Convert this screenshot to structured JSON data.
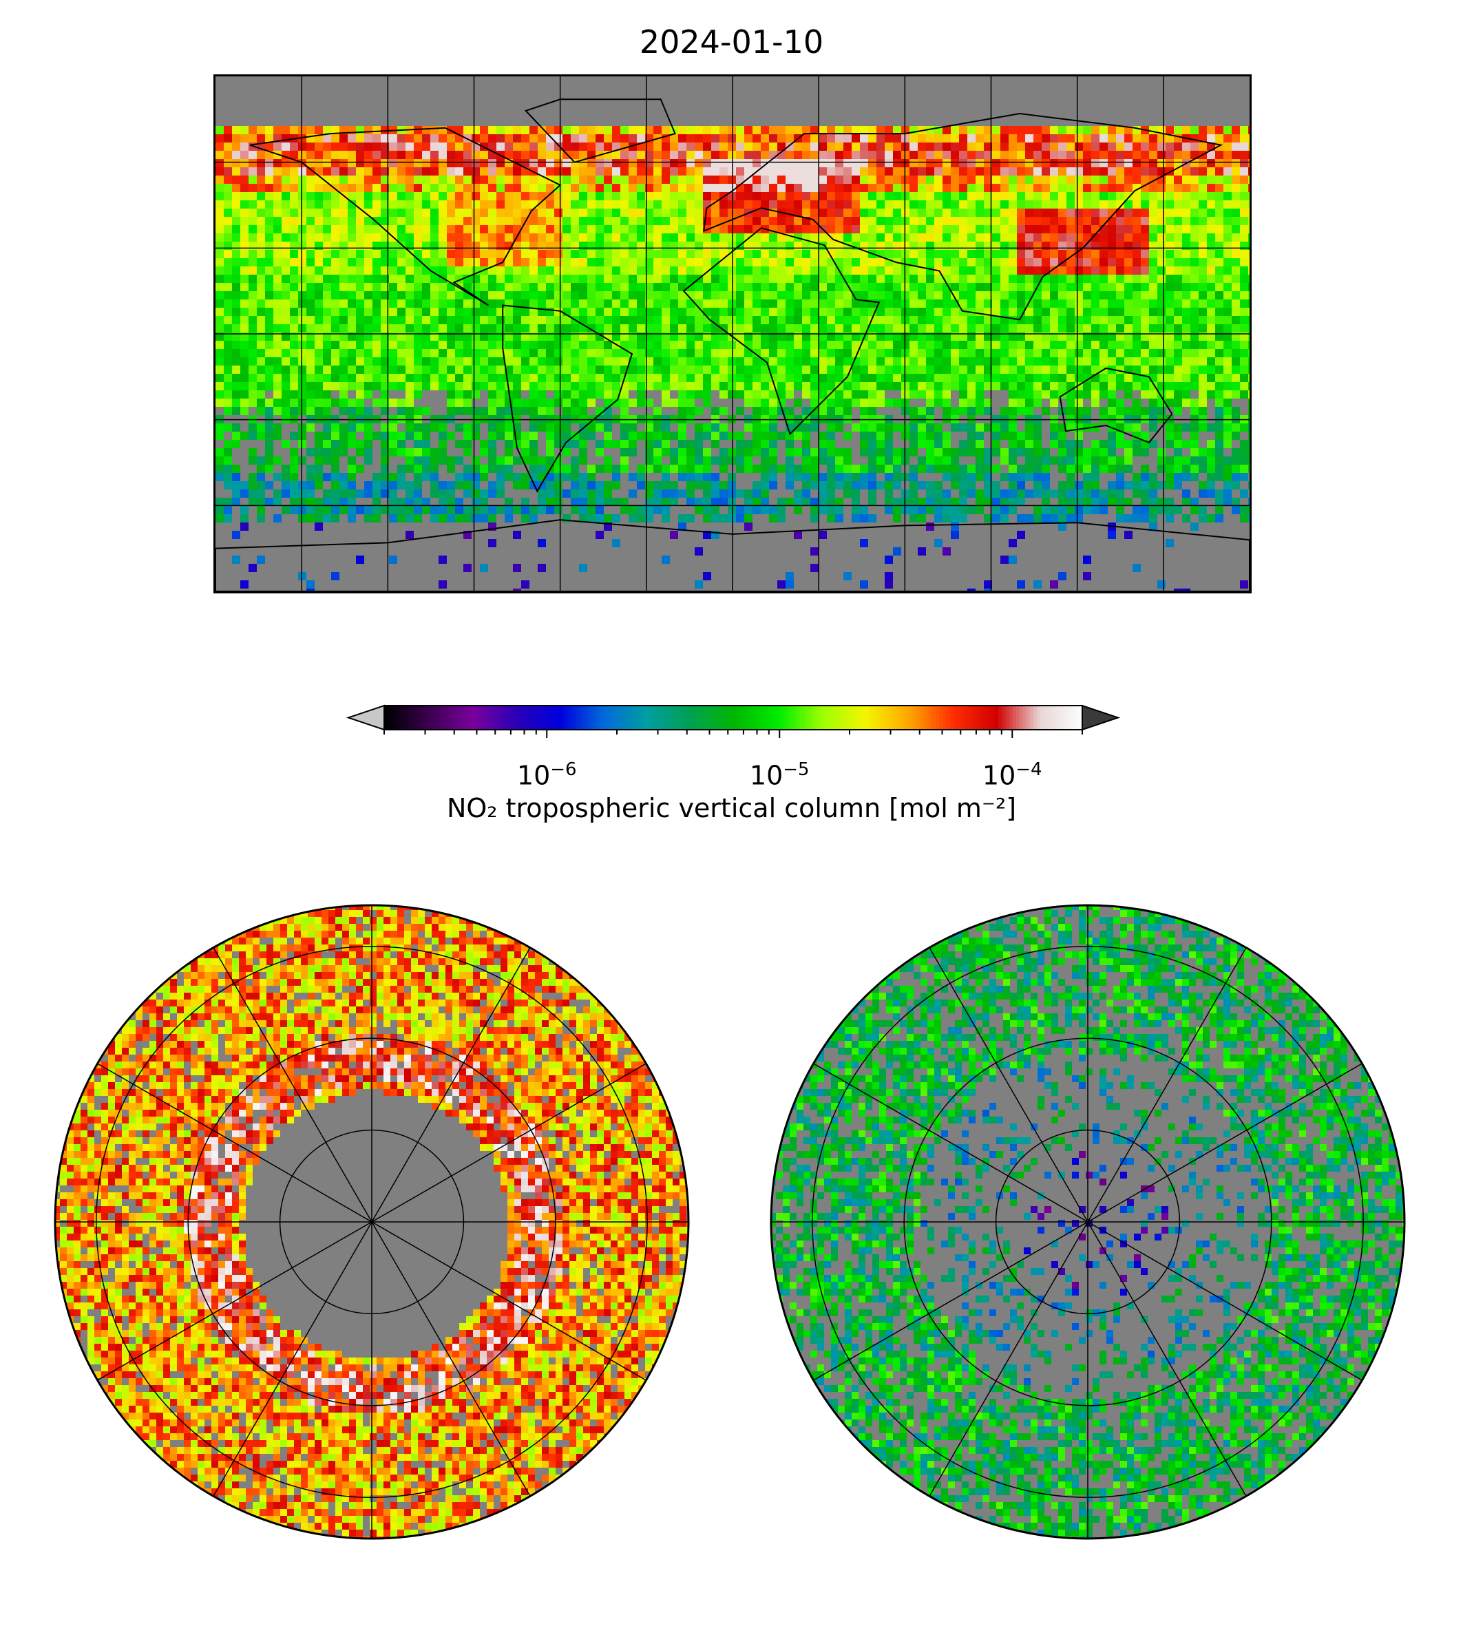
{
  "title": "2024-01-10",
  "colors": {
    "background_gray": "#808080",
    "under_color": "#c8c8c8",
    "over_color": "#3a3a3a",
    "grid": "#000000",
    "coast": "#000000"
  },
  "colormap": {
    "name": "spectral-like",
    "stops": [
      "#000000",
      "#3c0050",
      "#7a009c",
      "#2a00b8",
      "#0000dd",
      "#006bd9",
      "#009fa0",
      "#00a050",
      "#00b800",
      "#00ec00",
      "#9cff00",
      "#f5f500",
      "#ffa500",
      "#ff2d00",
      "#d10000",
      "#e9d6d6",
      "#ffffff"
    ]
  },
  "chart_data": [
    {
      "type": "heatmap",
      "panel": "global-map",
      "projection": "plate carree",
      "xlim": [
        -180,
        180
      ],
      "ylim": [
        -90,
        90
      ],
      "grid": true,
      "grid_lon_step": 30,
      "grid_lat_step": 30,
      "description_values": "NO2 tropospheric vertical column, global",
      "regions": [
        {
          "name": "high northern latitudes band",
          "lat": [
            55,
            70
          ],
          "level": "high"
        },
        {
          "name": "Europe",
          "lat": [
            35,
            60
          ],
          "lon": [
            -10,
            40
          ],
          "level": "high"
        },
        {
          "name": "East Asia",
          "lat": [
            20,
            45
          ],
          "lon": [
            100,
            140
          ],
          "level": "high"
        },
        {
          "name": "North America east",
          "lat": [
            25,
            50
          ],
          "lon": [
            -100,
            -60
          ],
          "level": "moderate-high"
        },
        {
          "name": "tropics",
          "lat": [
            -30,
            30
          ],
          "level": "moderate"
        },
        {
          "name": "Southern Ocean",
          "lat": [
            -65,
            -40
          ],
          "level": "low"
        },
        {
          "name": "Antarctica",
          "lat": [
            -90,
            -65
          ],
          "level": "missing/very low"
        }
      ]
    },
    {
      "type": "heatmap",
      "panel": "north-polar",
      "projection": "north polar stereographic",
      "grid": true,
      "level": "high in mid latitudes, missing near pole"
    },
    {
      "type": "heatmap",
      "panel": "south-polar",
      "projection": "south polar stereographic",
      "grid": true,
      "level": "low, sparse"
    }
  ],
  "colorbar": {
    "scale": "log",
    "range": [
      2e-07,
      0.0002
    ],
    "extend": "both",
    "ticks": [
      {
        "value": 1e-06,
        "label_base": "10",
        "label_exp": "−6"
      },
      {
        "value": 1e-05,
        "label_base": "10",
        "label_exp": "−5"
      },
      {
        "value": 0.0001,
        "label_base": "10",
        "label_exp": "−4"
      }
    ],
    "label": "NO₂ tropospheric vertical column [mol m⁻²]"
  }
}
